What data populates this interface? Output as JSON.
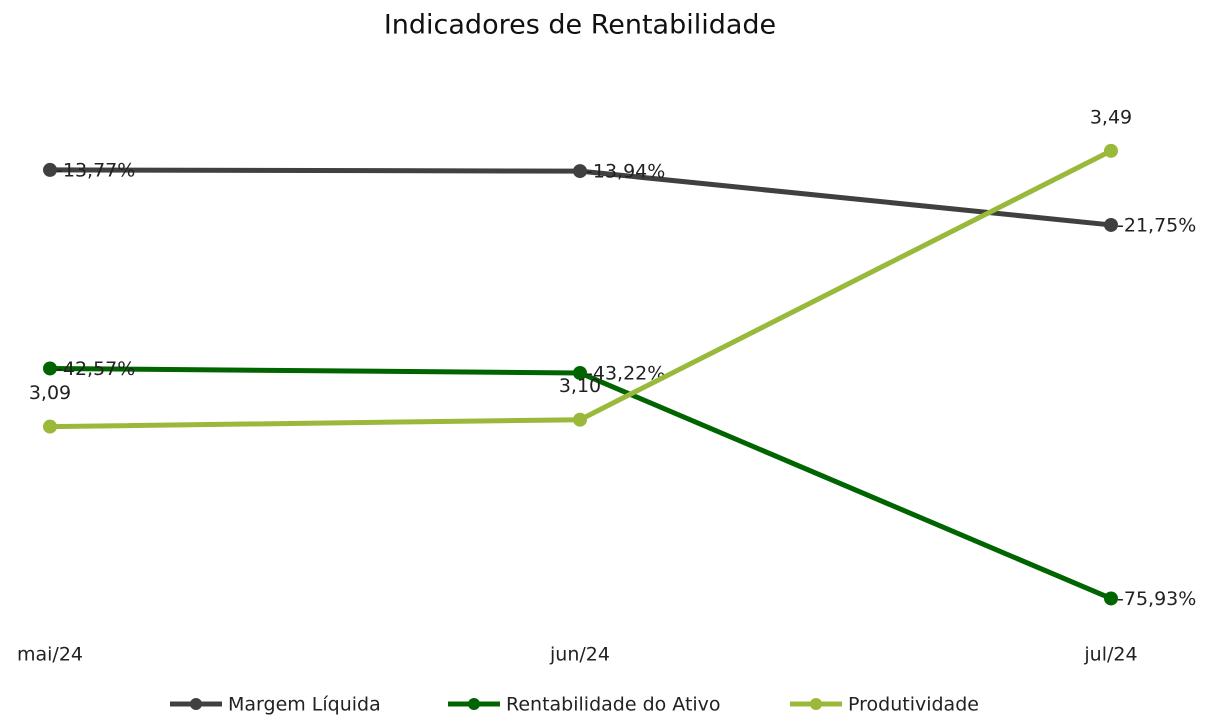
{
  "chart_data": {
    "type": "line",
    "title": "Indicadores de Rentabilidade",
    "categories": [
      "mai/24",
      "jun/24",
      "jul/24"
    ],
    "series": [
      {
        "name": "Margem Líquida",
        "color": "#404040",
        "values": [
          -13.77,
          -13.94,
          -21.75
        ],
        "value_labels": [
          "-13,77%",
          "-13,94%",
          "-21,75%"
        ]
      },
      {
        "name": "Rentabilidade do Ativo",
        "color": "#006400",
        "values": [
          -42.57,
          -43.22,
          -75.93
        ],
        "value_labels": [
          "-42,57%",
          "-43,22%",
          "-75,93%"
        ]
      },
      {
        "name": "Produtividade",
        "color": "#9ab83a",
        "axis": "y2",
        "values": [
          3.09,
          3.1,
          3.49
        ],
        "value_labels": [
          "3,09",
          "3,10",
          "3,49"
        ]
      }
    ],
    "ylim": [
      -85,
      0
    ],
    "y2lim": [
      2.75,
      3.6
    ],
    "legend": "bottom"
  }
}
